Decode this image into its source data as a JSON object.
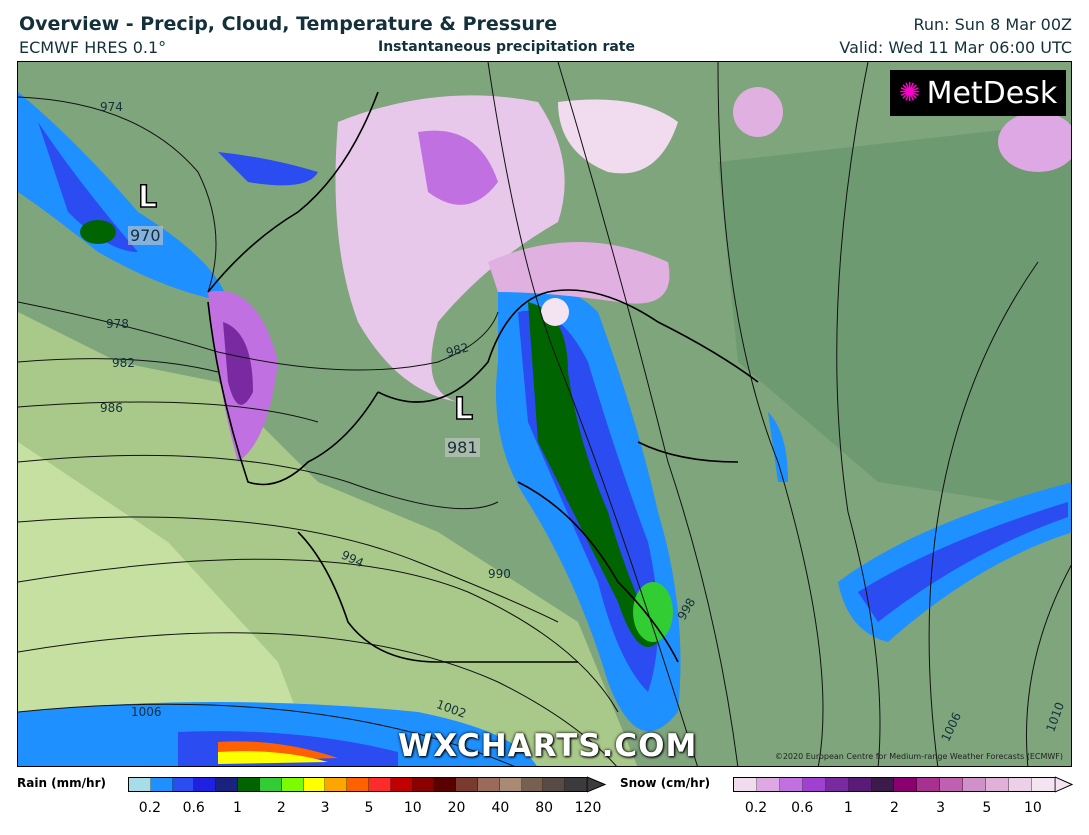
{
  "header": {
    "title": "Overview - Precip, Cloud, Temperature & Pressure",
    "model": "ECMWF HRES 0.1°",
    "subtitle": "Instantaneous precipitation rate",
    "run": "Run: Sun 8 Mar 00Z",
    "valid": "Valid: Wed 11 Mar 06:00 UTC"
  },
  "map": {
    "logo": "MetDesk",
    "watermark": "WXCHARTS.COM",
    "copyright": "©2020 European Centre for Medium-range Weather Forecasts (ECMWF)",
    "lows": [
      {
        "symbol": "L",
        "pressure": "970"
      },
      {
        "symbol": "L",
        "pressure": "981"
      }
    ],
    "isobar_labels": [
      "974",
      "978",
      "982",
      "986",
      "982",
      "994",
      "990",
      "998",
      "1006",
      "1002",
      "1006",
      "1010"
    ]
  },
  "legend": {
    "rain": {
      "label": "Rain (mm/hr)",
      "ticks": [
        "0.2",
        "0.6",
        "1",
        "2",
        "3",
        "5",
        "10",
        "20",
        "40",
        "80",
        "120"
      ],
      "colors": [
        "#a6dde8",
        "#1e90ff",
        "#2b4cf0",
        "#2020e0",
        "#1a2280",
        "#006400",
        "#32cd32",
        "#7cfc00",
        "#ffff00",
        "#ffa500",
        "#ff6000",
        "#ff2a2a",
        "#c00000",
        "#8b0000",
        "#5a0000",
        "#7a3b2e",
        "#9a6a5a",
        "#a88a75",
        "#786050",
        "#584a44",
        "#3c3a3c"
      ]
    },
    "snow": {
      "label": "Snow (cm/hr)",
      "ticks": [
        "0.2",
        "0.6",
        "1",
        "2",
        "3",
        "5",
        "10"
      ],
      "colors": [
        "#f0dcee",
        "#dda8e4",
        "#c070e0",
        "#a040d0",
        "#7a2aa0",
        "#5a1a78",
        "#3c1a4a",
        "#8a0070",
        "#a83090",
        "#c060b0",
        "#d090c8",
        "#e0b0d8",
        "#ecd0e8",
        "#f4e4f2"
      ]
    }
  }
}
